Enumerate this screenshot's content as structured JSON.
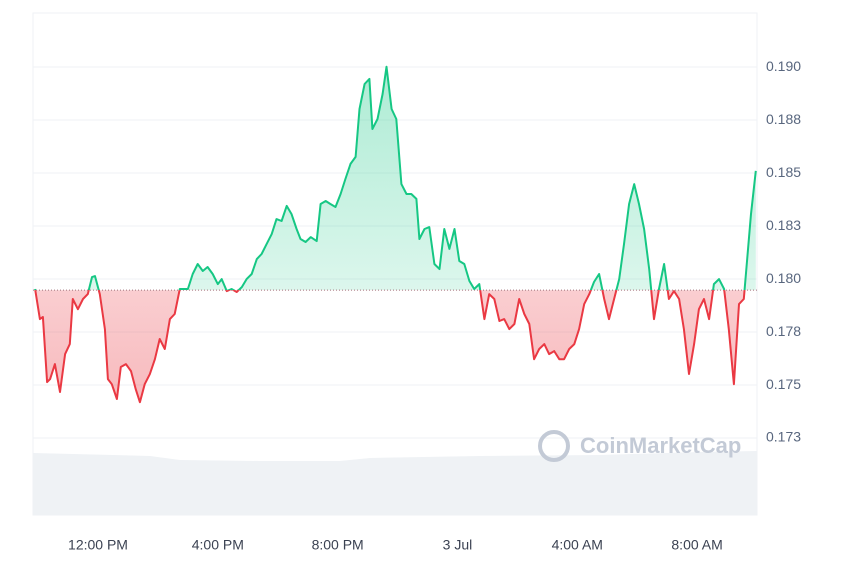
{
  "chart_data": {
    "type": "baseline-line",
    "watermark": "CoinMarketCap",
    "baseline": 0.17948,
    "up_color": "#16c784",
    "down_color": "#ea3943",
    "grid": true,
    "xlim": [
      9.83,
      34.0
    ],
    "ylim": [
      0.16887,
      0.19255
    ],
    "xticks": [
      {
        "value": 12,
        "label": "12:00 PM"
      },
      {
        "value": 16,
        "label": "4:00 PM"
      },
      {
        "value": 20,
        "label": "8:00 PM"
      },
      {
        "value": 24,
        "label": "3 Jul"
      },
      {
        "value": 28,
        "label": "4:00 AM"
      },
      {
        "value": 32,
        "label": "8:00 AM"
      }
    ],
    "yticks": [
      {
        "value": 0.1725,
        "label": "0.173"
      },
      {
        "value": 0.175,
        "label": "0.175"
      },
      {
        "value": 0.1775,
        "label": "0.178"
      },
      {
        "value": 0.18,
        "label": "0.180"
      },
      {
        "value": 0.1825,
        "label": "0.183"
      },
      {
        "value": 0.185,
        "label": "0.185"
      },
      {
        "value": 0.1875,
        "label": "0.188"
      },
      {
        "value": 0.19,
        "label": "0.190"
      }
    ],
    "x": [
      9.9,
      10.06,
      10.16,
      10.3,
      10.4,
      10.56,
      10.73,
      10.9,
      11.06,
      11.16,
      11.33,
      11.5,
      11.66,
      11.8,
      11.9,
      12.06,
      12.23,
      12.33,
      12.46,
      12.63,
      12.76,
      12.93,
      13.1,
      13.26,
      13.4,
      13.56,
      13.73,
      13.9,
      14.06,
      14.23,
      14.4,
      14.56,
      14.73,
      15.0,
      15.16,
      15.33,
      15.5,
      15.66,
      15.83,
      16.0,
      16.13,
      16.3,
      16.46,
      16.63,
      16.8,
      16.96,
      17.13,
      17.3,
      17.46,
      17.63,
      17.8,
      17.96,
      18.13,
      18.3,
      18.46,
      18.63,
      18.76,
      18.93,
      19.1,
      19.3,
      19.43,
      19.6,
      19.76,
      19.93,
      20.1,
      20.26,
      20.43,
      20.6,
      20.73,
      20.9,
      21.06,
      21.16,
      21.33,
      21.5,
      21.63,
      21.8,
      21.96,
      22.13,
      22.3,
      22.46,
      22.63,
      22.73,
      22.9,
      23.06,
      23.23,
      23.4,
      23.56,
      23.73,
      23.9,
      24.06,
      24.23,
      24.4,
      24.56,
      24.73,
      24.9,
      25.06,
      25.23,
      25.4,
      25.56,
      25.73,
      25.9,
      26.06,
      26.23,
      26.4,
      26.56,
      26.73,
      26.9,
      27.06,
      27.23,
      27.4,
      27.56,
      27.73,
      27.9,
      28.06,
      28.23,
      28.4,
      28.56,
      28.73,
      28.9,
      29.06,
      29.23,
      29.4,
      29.56,
      29.73,
      29.9,
      30.06,
      30.23,
      30.4,
      30.56,
      30.73,
      30.9,
      31.06,
      31.23,
      31.4,
      31.56,
      31.73,
      31.9,
      32.06,
      32.23,
      32.4,
      32.56,
      32.73,
      32.9,
      33.06,
      33.23,
      33.4,
      33.56,
      33.8,
      33.96
    ],
    "values": [
      0.17953,
      0.17811,
      0.17821,
      0.17514,
      0.17528,
      0.17599,
      0.17467,
      0.17646,
      0.17693,
      0.17906,
      0.17858,
      0.17906,
      0.17929,
      0.18009,
      0.18014,
      0.17929,
      0.17764,
      0.17528,
      0.17504,
      0.17434,
      0.17585,
      0.17599,
      0.17566,
      0.17481,
      0.17419,
      0.17504,
      0.17551,
      0.17622,
      0.17717,
      0.1767,
      0.17811,
      0.17835,
      0.17953,
      0.17953,
      0.18024,
      0.18071,
      0.18038,
      0.18057,
      0.18024,
      0.17976,
      0.18,
      0.17943,
      0.17953,
      0.17939,
      0.17962,
      0.18,
      0.18024,
      0.18094,
      0.18118,
      0.18165,
      0.18212,
      0.18283,
      0.18274,
      0.18345,
      0.18307,
      0.18236,
      0.18189,
      0.18175,
      0.18198,
      0.18179,
      0.18354,
      0.18368,
      0.18354,
      0.1834,
      0.18401,
      0.18472,
      0.18543,
      0.18576,
      0.18802,
      0.1892,
      0.18944,
      0.18708,
      0.18755,
      0.18873,
      0.19001,
      0.18802,
      0.18755,
      0.18448,
      0.18401,
      0.18401,
      0.18378,
      0.18189,
      0.18236,
      0.18245,
      0.18071,
      0.18047,
      0.18236,
      0.18142,
      0.18236,
      0.18085,
      0.18071,
      0.17991,
      0.17953,
      0.17976,
      0.17811,
      0.17929,
      0.17906,
      0.17802,
      0.17811,
      0.17764,
      0.17788,
      0.17906,
      0.17835,
      0.17788,
      0.17622,
      0.1767,
      0.17693,
      0.17646,
      0.1766,
      0.17622,
      0.17622,
      0.1767,
      0.17693,
      0.17764,
      0.17882,
      0.17929,
      0.17986,
      0.18024,
      0.17906,
      0.17811,
      0.17906,
      0.18,
      0.18165,
      0.18354,
      0.18448,
      0.18354,
      0.18236,
      0.18047,
      0.17811,
      0.17953,
      0.18071,
      0.17906,
      0.17943,
      0.17906,
      0.17764,
      0.17552,
      0.17693,
      0.17858,
      0.17906,
      0.17811,
      0.17976,
      0.18,
      0.17953,
      0.17764,
      0.17504,
      0.17882,
      0.17906,
      0.18307,
      0.1851
    ]
  }
}
